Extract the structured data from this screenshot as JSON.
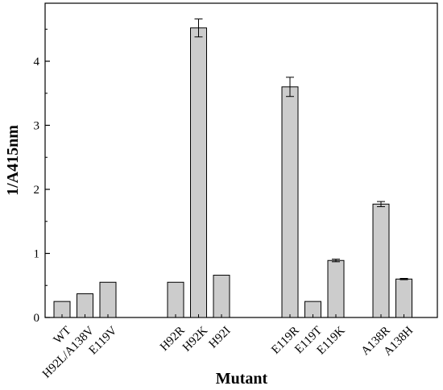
{
  "chart_data": {
    "type": "bar",
    "xlabel": "Mutant",
    "ylabel": "1/A415nm",
    "ylim": [
      0,
      4.8
    ],
    "yticks": [
      0,
      1,
      2,
      3,
      4
    ],
    "grid": false,
    "legend": "none",
    "bar_color": "#cccccc",
    "groups": [
      {
        "categories": [
          "WT",
          "H92L/A138V",
          "E119V"
        ],
        "values": [
          0.25,
          0.37,
          0.55
        ],
        "errors": [
          0,
          0,
          0
        ]
      },
      {
        "categories": [
          "H92R",
          "H92K",
          "H92I"
        ],
        "values": [
          0.55,
          4.52,
          0.66
        ],
        "errors": [
          0,
          0.14,
          0
        ]
      },
      {
        "categories": [
          "E119R",
          "E119T",
          "E119K"
        ],
        "values": [
          3.6,
          0.25,
          0.89
        ],
        "errors": [
          0.15,
          0,
          0.02
        ]
      },
      {
        "categories": [
          "A138R",
          "A138H"
        ],
        "values": [
          1.77,
          0.6
        ],
        "errors": [
          0.04,
          0.01
        ]
      }
    ]
  }
}
